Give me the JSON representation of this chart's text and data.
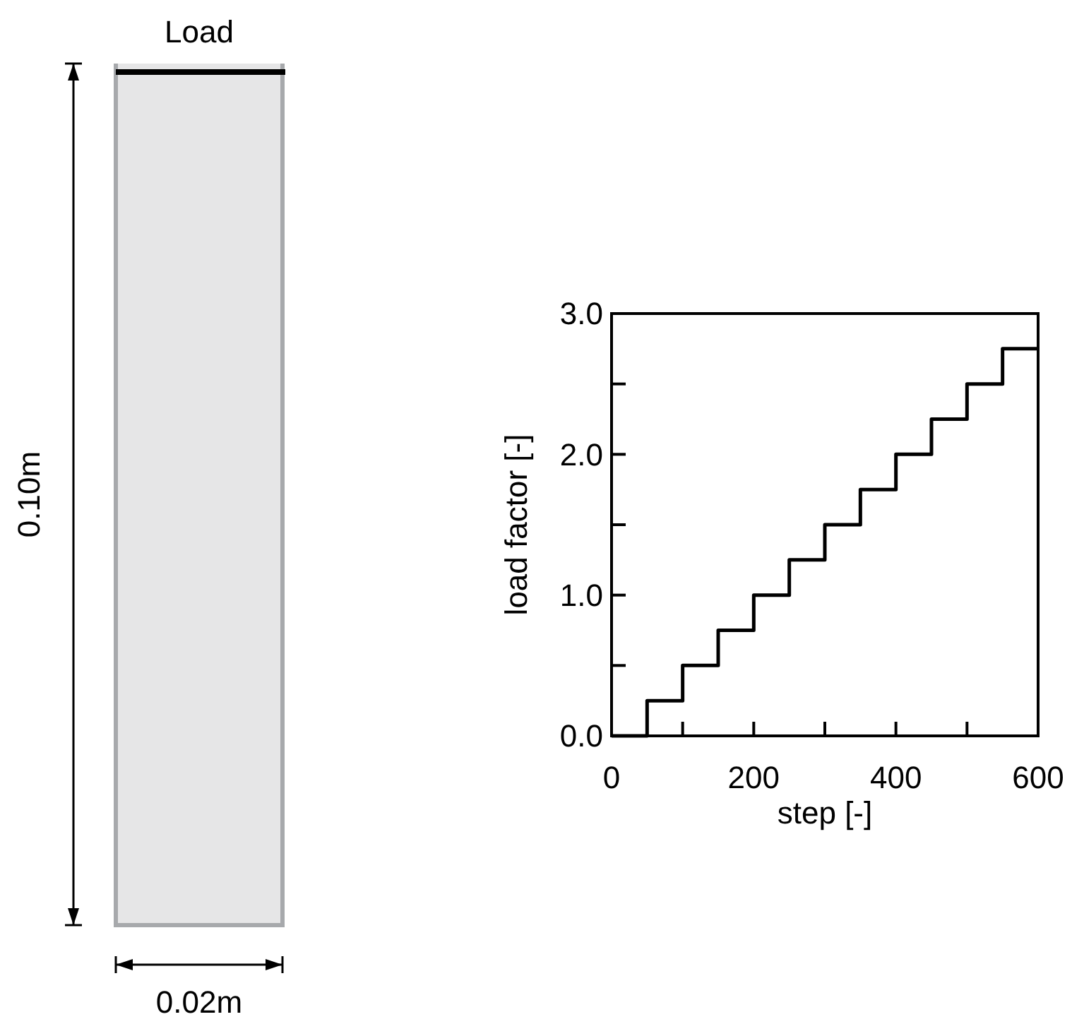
{
  "chart_data": {
    "type": "step",
    "xlabel": "step [-]",
    "ylabel": "load factor [-]",
    "color": "#000000",
    "x": [
      0,
      50,
      100,
      150,
      200,
      250,
      300,
      350,
      400,
      450,
      500,
      550,
      600
    ],
    "values": [
      0,
      0.25,
      0.5,
      0.75,
      1.0,
      1.25,
      1.5,
      1.75,
      2.0,
      2.25,
      2.5,
      2.75,
      2.75
    ],
    "xlim": [
      0,
      600
    ],
    "ylim": [
      0,
      3
    ],
    "xticks": [
      0,
      {
        "value": 100,
        "label": null
      },
      200,
      {
        "value": 300,
        "label": null
      },
      400,
      {
        "value": 500,
        "label": null
      },
      600
    ],
    "yticks": [
      {
        "value": 0,
        "label": "0.0"
      },
      {
        "value": 0.5,
        "label": null
      },
      {
        "value": 1,
        "label": "1.0"
      },
      {
        "value": 1.5,
        "label": null
      },
      {
        "value": 2,
        "label": "2.0"
      },
      {
        "value": 2.5,
        "label": null
      },
      {
        "value": 3,
        "label": "3.0"
      }
    ],
    "annotations": [
      "Load",
      "0.10m",
      "0.02m"
    ]
  }
}
